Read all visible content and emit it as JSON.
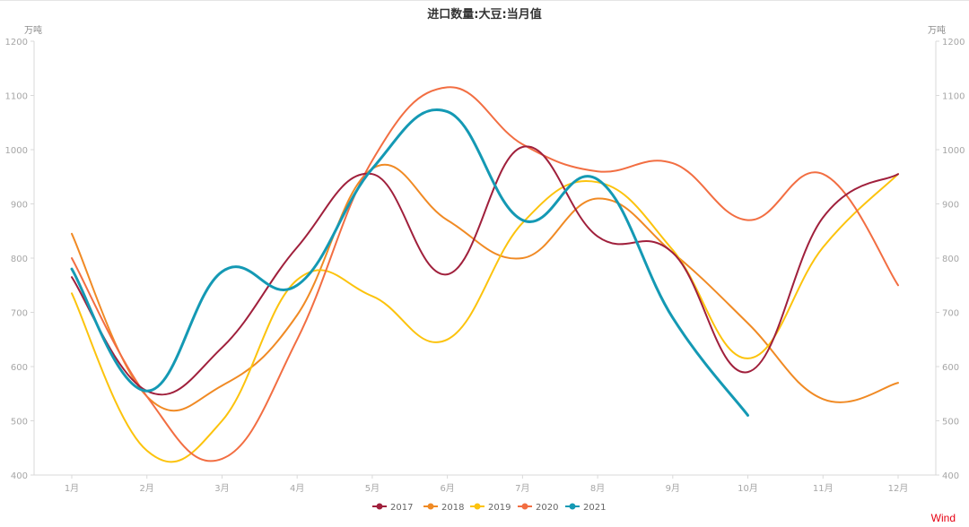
{
  "chart_data": {
    "type": "line",
    "title": "进口数量:大豆:当月值",
    "y_unit_left": "万吨",
    "y_unit_right": "万吨",
    "categories": [
      "1月",
      "2月",
      "3月",
      "4月",
      "5月",
      "6月",
      "7月",
      "8月",
      "9月",
      "10月",
      "11月",
      "12月"
    ],
    "ylim": [
      400,
      1200
    ],
    "yticks": [
      400,
      500,
      600,
      700,
      800,
      900,
      1000,
      1100,
      1200
    ],
    "grid": false,
    "legend_position": "bottom",
    "series": [
      {
        "name": "2017",
        "color": "#a0203c",
        "values": [
          765,
          555,
          635,
          820,
          955,
          770,
          1005,
          840,
          810,
          590,
          875,
          955
        ]
      },
      {
        "name": "2018",
        "color": "#f08a24",
        "values": [
          845,
          545,
          565,
          695,
          965,
          870,
          800,
          910,
          810,
          680,
          540,
          570
        ]
      },
      {
        "name": "2019",
        "color": "#fcc30d",
        "values": [
          735,
          445,
          500,
          760,
          730,
          650,
          865,
          940,
          815,
          615,
          820,
          955
        ]
      },
      {
        "name": "2020",
        "color": "#f26e42",
        "values": [
          800,
          545,
          430,
          650,
          980,
          1115,
          1010,
          960,
          975,
          870,
          955,
          750
        ]
      },
      {
        "name": "2021",
        "color": "#1499b4",
        "values": [
          780,
          555,
          775,
          750,
          965,
          1070,
          870,
          945,
          690,
          510,
          null,
          null
        ]
      }
    ]
  },
  "source_label": "Wind"
}
